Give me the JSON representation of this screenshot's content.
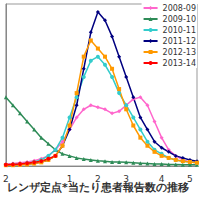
{
  "chart_data": {
    "type": "line",
    "title": "レンザ定点*当たり患者報告数の推移",
    "categories": [
      "2",
      null,
      null,
      null,
      null,
      null,
      null,
      null,
      null,
      "1",
      null,
      null,
      null,
      "2",
      null,
      null,
      null,
      "3",
      null,
      null,
      null,
      null,
      "4",
      null,
      null,
      null,
      "5",
      null
    ],
    "ylim": [
      0,
      40
    ],
    "yticks": [],
    "tick_labels": "x",
    "legend": "upper right",
    "series": [
      {
        "name": "2008-09",
        "color": "#ff66cc",
        "marker": "diamond",
        "values": [
          0.5,
          0.6,
          0.8,
          1,
          1.3,
          1.8,
          2.5,
          4,
          6,
          9,
          12,
          14,
          15,
          14.5,
          14,
          13,
          13.5,
          15,
          16.5,
          17,
          15,
          11,
          7,
          4,
          2.5,
          1.5,
          1,
          0.8
        ]
      },
      {
        "name": "2009-10",
        "color": "#2e8b57",
        "marker": "triangle",
        "values": [
          17,
          15,
          13,
          11,
          9,
          7,
          5.5,
          4,
          3,
          2.5,
          2,
          1.7,
          1.5,
          1.3,
          1.2,
          1,
          1,
          0.9,
          0.8,
          0.7,
          0.6,
          0.5,
          0.5,
          0.4,
          0.4,
          0.3,
          0.3,
          0.3
        ]
      },
      {
        "name": "2010-11",
        "color": "#33cccc",
        "marker": "circle",
        "values": [
          0.3,
          0.4,
          0.5,
          0.7,
          1,
          1.5,
          2.5,
          4,
          7,
          12,
          17,
          22,
          26,
          27,
          25,
          22,
          18,
          15,
          12,
          9,
          6,
          4,
          3,
          2,
          1.5,
          1.2,
          1,
          0.8
        ]
      },
      {
        "name": "2011-12",
        "color": "#000080",
        "marker": "diamond",
        "values": [
          0.3,
          0.3,
          0.4,
          0.5,
          0.7,
          1,
          1.5,
          2.5,
          5,
          9,
          15,
          24,
          33,
          38,
          36,
          32,
          27,
          22,
          17,
          12,
          9,
          6,
          4.5,
          3.5,
          2.5,
          2,
          1.5,
          1.2
        ]
      },
      {
        "name": "2012-13",
        "color": "#ff9900",
        "marker": "square",
        "values": [
          0.2,
          0.2,
          0.3,
          0.4,
          0.6,
          0.9,
          1.5,
          2.5,
          5,
          10,
          18,
          27,
          31,
          29,
          27,
          24,
          19,
          14,
          10,
          7,
          5,
          3.5,
          2.5,
          2,
          1.5,
          1.2,
          1,
          0.8
        ]
      },
      {
        "name": "2013-14",
        "color": "#ff0000",
        "marker": "circle",
        "values": [
          0.3,
          0.4,
          0.5,
          0.7,
          0.9,
          1.2,
          1.8,
          2.5,
          null,
          null,
          null,
          null,
          null,
          null,
          null,
          null,
          null,
          null,
          null,
          null,
          null,
          null,
          null,
          null,
          null,
          null,
          null,
          null
        ]
      }
    ]
  }
}
